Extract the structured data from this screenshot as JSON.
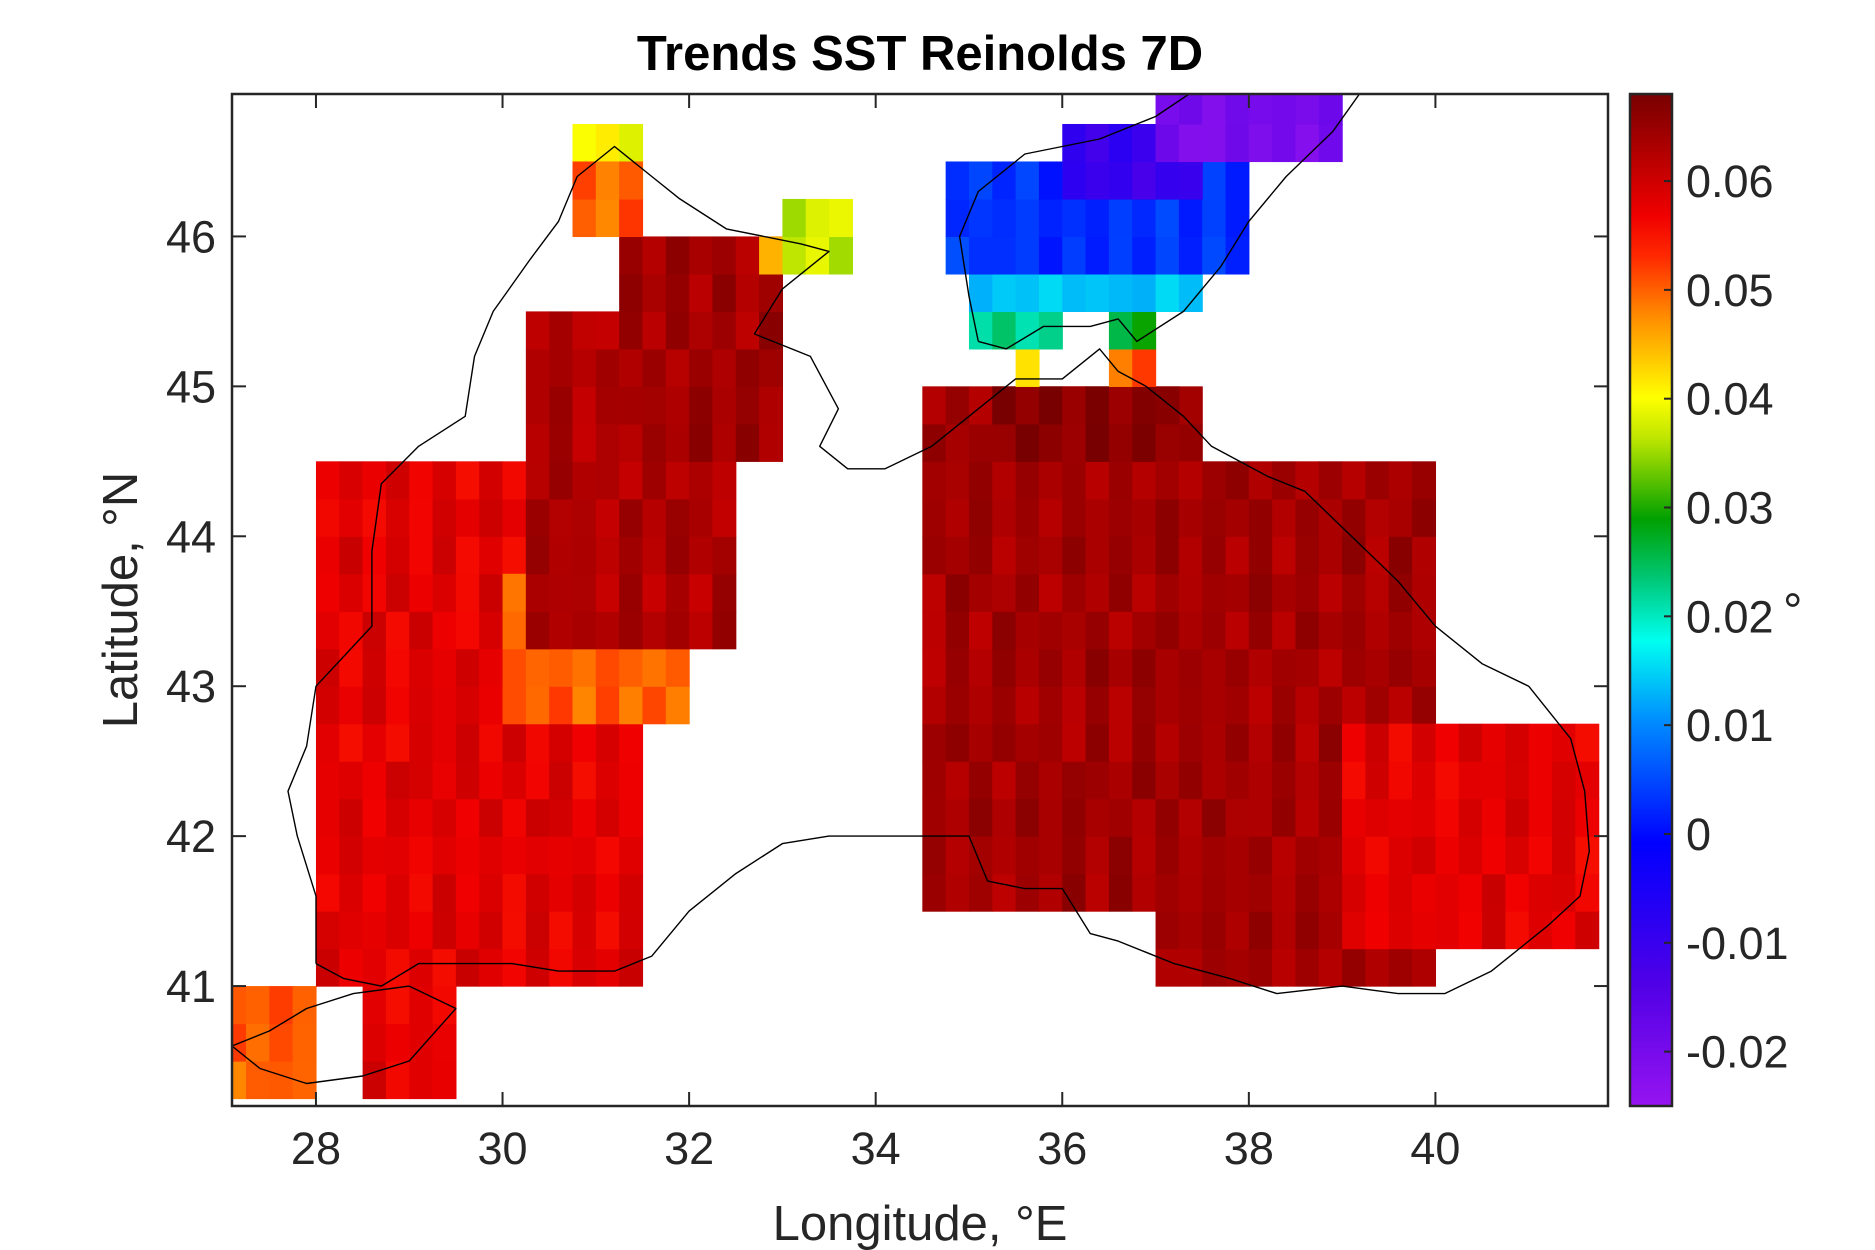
{
  "chart_data": {
    "type": "heatmap",
    "title": "Trends SST Reinolds 7D",
    "xlabel": "Longitude, °E",
    "ylabel": "Latitude, °N",
    "xlim": [
      27.1,
      41.85
    ],
    "ylim": [
      40.2,
      46.95
    ],
    "xticks": [
      "28",
      "30",
      "32",
      "34",
      "36",
      "38",
      "40"
    ],
    "yticks": [
      "41",
      "42",
      "43",
      "44",
      "45",
      "46"
    ],
    "colorbar": {
      "label": "°",
      "range": [
        -0.025,
        0.068
      ],
      "ticks": [
        "-0.02",
        "-0.01",
        "0",
        "0.01",
        "0.02",
        "0.03",
        "0.04",
        "0.05",
        "0.06"
      ],
      "colormap": "jet-like (violet-blue-cyan-green-yellow-orange-red-darkred)"
    },
    "grid_step_deg": 0.25,
    "patches": [
      {
        "lon": [
          28.6,
          29.4
        ],
        "lat": [
          40.3,
          41.0
        ],
        "value": 0.058
      },
      {
        "lon": [
          27.2,
          27.8
        ],
        "lat": [
          40.3,
          40.8
        ],
        "value": 0.05
      },
      {
        "lon": [
          28.0,
          31.5
        ],
        "lat": [
          41.1,
          44.3
        ],
        "value": 0.058
      },
      {
        "lon": [
          30.2,
          31.8
        ],
        "lat": [
          42.8,
          43.6
        ],
        "value": 0.05
      },
      {
        "lon": [
          30.3,
          32.4
        ],
        "lat": [
          43.4,
          45.4
        ],
        "value": 0.063
      },
      {
        "lon": [
          31.3,
          33.0
        ],
        "lat": [
          44.6,
          45.9
        ],
        "value": 0.064
      },
      {
        "lon": [
          30.8,
          31.3
        ],
        "lat": [
          46.3,
          46.65
        ],
        "value": 0.04
      },
      {
        "lon": [
          30.8,
          31.5
        ],
        "lat": [
          46.0,
          46.4
        ],
        "value": 0.05
      },
      {
        "lon": [
          32.9,
          33.1
        ],
        "lat": [
          45.8,
          46.0
        ],
        "value": 0.045
      },
      {
        "lon": [
          33.1,
          33.6
        ],
        "lat": [
          45.8,
          46.2
        ],
        "value": 0.037
      },
      {
        "lon": [
          34.6,
          37.3
        ],
        "lat": [
          41.5,
          45.0
        ],
        "value": 0.064
      },
      {
        "lon": [
          35.3,
          37.2
        ],
        "lat": [
          44.5,
          45.0
        ],
        "value": 0.067
      },
      {
        "lon": [
          37.0,
          40.0
        ],
        "lat": [
          41.0,
          44.3
        ],
        "value": 0.064
      },
      {
        "lon": [
          39.0,
          41.7
        ],
        "lat": [
          41.3,
          42.7
        ],
        "value": 0.058
      },
      {
        "lon": [
          35.5,
          35.7
        ],
        "lat": [
          45.0,
          45.25
        ],
        "value": 0.043
      },
      {
        "lon": [
          35.2,
          35.8
        ],
        "lat": [
          45.25,
          45.5
        ],
        "value": 0.022
      },
      {
        "lon": [
          36.5,
          37.0
        ],
        "lat": [
          45.0,
          45.25
        ],
        "value": 0.05
      },
      {
        "lon": [
          36.5,
          37.0
        ],
        "lat": [
          45.25,
          45.5
        ],
        "value": 0.028
      },
      {
        "lon": [
          35.0,
          37.5
        ],
        "lat": [
          45.5,
          45.75
        ],
        "value": 0.014
      },
      {
        "lon": [
          34.9,
          37.8
        ],
        "lat": [
          45.75,
          46.5
        ],
        "value": 0.003
      },
      {
        "lon": [
          36.0,
          37.3
        ],
        "lat": [
          46.4,
          46.75
        ],
        "value": -0.01
      },
      {
        "lon": [
          37.2,
          38.8
        ],
        "lat": [
          46.5,
          46.9
        ],
        "value": -0.02
      }
    ]
  }
}
